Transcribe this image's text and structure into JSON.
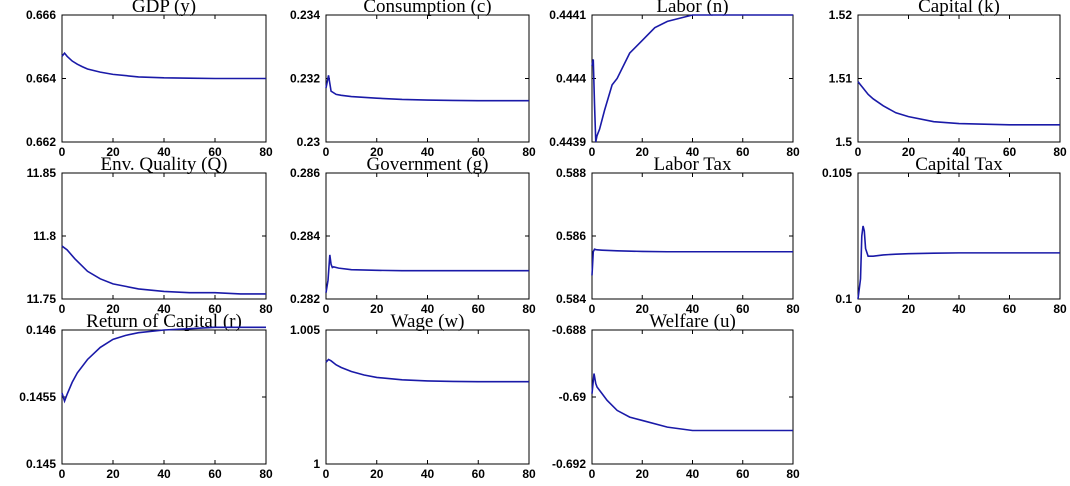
{
  "colors": {
    "line": "#1a1aa8",
    "axes": "#000000",
    "background": "#ffffff"
  },
  "chart_data": [
    {
      "type": "line",
      "title": "GDP (y)",
      "xlabel": "",
      "ylabel": "",
      "xlim": [
        0,
        80
      ],
      "ylim": [
        0.662,
        0.666
      ],
      "xticks": [
        "0",
        "20",
        "40",
        "60",
        "80"
      ],
      "yticks": [
        "0.662",
        "0.664",
        "0.666"
      ],
      "grid": false,
      "series": [
        {
          "x": [
            0,
            1,
            2,
            4,
            6,
            8,
            10,
            15,
            20,
            30,
            40,
            50,
            60,
            70,
            80
          ],
          "y": [
            0.6647,
            0.6648,
            0.6647,
            0.66455,
            0.66445,
            0.66437,
            0.6643,
            0.6642,
            0.66413,
            0.66405,
            0.66402,
            0.66401,
            0.664,
            0.664,
            0.664
          ]
        }
      ]
    },
    {
      "type": "line",
      "title": "Consumption (c)",
      "xlabel": "",
      "ylabel": "",
      "xlim": [
        0,
        80
      ],
      "ylim": [
        0.23,
        0.234
      ],
      "xticks": [
        "0",
        "20",
        "40",
        "60",
        "80"
      ],
      "yticks": [
        "0.23",
        "0.232",
        "0.234"
      ],
      "grid": false,
      "series": [
        {
          "x": [
            0,
            1,
            2,
            4,
            6,
            10,
            20,
            30,
            40,
            50,
            60,
            70,
            80
          ],
          "y": [
            0.2317,
            0.2321,
            0.2316,
            0.2315,
            0.23147,
            0.23143,
            0.23138,
            0.23134,
            0.23132,
            0.23131,
            0.2313,
            0.2313,
            0.2313
          ]
        }
      ]
    },
    {
      "type": "line",
      "title": "Labor (n)",
      "xlabel": "",
      "ylabel": "",
      "xlim": [
        0,
        80
      ],
      "ylim": [
        0.4439,
        0.4441
      ],
      "xticks": [
        "0",
        "20",
        "40",
        "60",
        "80"
      ],
      "yticks": [
        "0.4439",
        "0.444",
        "0.4441"
      ],
      "grid": false,
      "series": [
        {
          "x": [
            0,
            0.5,
            1,
            1.5,
            2,
            3,
            5,
            8,
            10,
            15,
            20,
            25,
            30,
            40,
            50,
            60,
            70,
            80
          ],
          "y": [
            0.44402,
            0.44403,
            0.44396,
            0.4439,
            0.44391,
            0.44392,
            0.44395,
            0.44399,
            0.444,
            0.44404,
            0.44406,
            0.44408,
            0.44409,
            0.4441,
            0.4441,
            0.4441,
            0.4441,
            0.4441
          ]
        }
      ]
    },
    {
      "type": "line",
      "title": "Capital (k)",
      "xlabel": "",
      "ylabel": "",
      "xlim": [
        0,
        80
      ],
      "ylim": [
        1.5,
        1.52
      ],
      "xticks": [
        "0",
        "20",
        "40",
        "60",
        "80"
      ],
      "yticks": [
        "1.5",
        "1.51",
        "1.52"
      ],
      "grid": false,
      "series": [
        {
          "x": [
            0,
            1,
            2,
            4,
            6,
            10,
            15,
            20,
            30,
            40,
            50,
            60,
            70,
            80
          ],
          "y": [
            1.5095,
            1.509,
            1.5085,
            1.5075,
            1.5068,
            1.5057,
            1.5046,
            1.504,
            1.5032,
            1.5029,
            1.5028,
            1.5027,
            1.5027,
            1.5027
          ]
        }
      ]
    },
    {
      "type": "line",
      "title": "Env. Quality (Q)",
      "xlabel": "",
      "ylabel": "",
      "xlim": [
        0,
        80
      ],
      "ylim": [
        11.75,
        11.85
      ],
      "xticks": [
        "0",
        "20",
        "40",
        "60",
        "80"
      ],
      "yticks": [
        "11.75",
        "11.8",
        "11.85"
      ],
      "grid": false,
      "series": [
        {
          "x": [
            0,
            2,
            5,
            10,
            15,
            20,
            25,
            30,
            40,
            50,
            60,
            70,
            80
          ],
          "y": [
            11.792,
            11.789,
            11.782,
            11.772,
            11.766,
            11.762,
            11.76,
            11.758,
            11.756,
            11.755,
            11.755,
            11.754,
            11.754
          ]
        }
      ]
    },
    {
      "type": "line",
      "title": "Government (g)",
      "xlabel": "",
      "ylabel": "",
      "xlim": [
        0,
        80
      ],
      "ylim": [
        0.282,
        0.286
      ],
      "xticks": [
        "0",
        "20",
        "40",
        "60",
        "80"
      ],
      "yticks": [
        "0.282",
        "0.284",
        "0.286"
      ],
      "grid": false,
      "series": [
        {
          "x": [
            0,
            0.8,
            1.5,
            2,
            2.5,
            3,
            5,
            10,
            20,
            30,
            40,
            50,
            60,
            70,
            80
          ],
          "y": [
            0.2822,
            0.2826,
            0.2834,
            0.2831,
            0.283,
            0.28302,
            0.28298,
            0.28293,
            0.28291,
            0.2829,
            0.2829,
            0.2829,
            0.2829,
            0.2829,
            0.2829
          ]
        }
      ]
    },
    {
      "type": "line",
      "title": "Labor Tax",
      "xlabel": "",
      "ylabel": "",
      "xlim": [
        0,
        80
      ],
      "ylim": [
        0.584,
        0.588
      ],
      "xticks": [
        "0",
        "20",
        "40",
        "60",
        "80"
      ],
      "yticks": [
        "0.584",
        "0.586",
        "0.588"
      ],
      "grid": false,
      "series": [
        {
          "x": [
            0,
            0.5,
            1,
            1.5,
            2,
            4,
            10,
            20,
            30,
            40,
            50,
            60,
            70,
            80
          ],
          "y": [
            0.58475,
            0.5855,
            0.58558,
            0.58557,
            0.58556,
            0.58555,
            0.58553,
            0.58551,
            0.5855,
            0.5855,
            0.5855,
            0.5855,
            0.5855,
            0.5855
          ]
        }
      ]
    },
    {
      "type": "line",
      "title": "Capital Tax",
      "xlabel": "",
      "ylabel": "",
      "xlim": [
        0,
        80
      ],
      "ylim": [
        0.1,
        0.105
      ],
      "xticks": [
        "0",
        "20",
        "40",
        "60",
        "80"
      ],
      "yticks": [
        "0.1",
        "0.105"
      ],
      "grid": false,
      "series": [
        {
          "x": [
            0,
            1,
            1.5,
            2,
            2.5,
            3,
            4,
            6,
            10,
            15,
            20,
            30,
            40,
            50,
            60,
            70,
            80
          ],
          "y": [
            0.1,
            0.1008,
            0.1025,
            0.1029,
            0.1027,
            0.102,
            0.1017,
            0.1017,
            0.10175,
            0.10178,
            0.1018,
            0.10182,
            0.10183,
            0.10183,
            0.10183,
            0.10183,
            0.10183
          ]
        }
      ]
    },
    {
      "type": "line",
      "title": "Return of Capital (r)",
      "xlabel": "",
      "ylabel": "",
      "xlim": [
        0,
        80
      ],
      "ylim": [
        0.145,
        0.146
      ],
      "xticks": [
        "0",
        "20",
        "40",
        "60",
        "80"
      ],
      "yticks": [
        "0.145",
        "0.1455",
        "0.146"
      ],
      "grid": false,
      "series": [
        {
          "x": [
            0,
            1,
            2,
            4,
            6,
            10,
            15,
            20,
            25,
            30,
            40,
            50,
            60,
            70,
            80
          ],
          "y": [
            0.14553,
            0.14547,
            0.14552,
            0.14561,
            0.14568,
            0.14578,
            0.14587,
            0.14593,
            0.14596,
            0.14598,
            0.146,
            0.14601,
            0.14602,
            0.14602,
            0.14602
          ]
        }
      ]
    },
    {
      "type": "line",
      "title": "Wage (w)",
      "xlabel": "",
      "ylabel": "",
      "xlim": [
        0,
        80
      ],
      "ylim": [
        1,
        1.005
      ],
      "xticks": [
        "0",
        "20",
        "40",
        "60",
        "80"
      ],
      "yticks": [
        "1",
        "1.005"
      ],
      "grid": false,
      "series": [
        {
          "x": [
            0,
            1,
            2,
            4,
            6,
            10,
            15,
            20,
            30,
            40,
            50,
            60,
            70,
            80
          ],
          "y": [
            1.0038,
            1.0039,
            1.00385,
            1.0037,
            1.0036,
            1.00345,
            1.00332,
            1.00323,
            1.00314,
            1.0031,
            1.00308,
            1.00307,
            1.00307,
            1.00307
          ]
        }
      ]
    },
    {
      "type": "line",
      "title": "Welfare (u)",
      "xlabel": "",
      "ylabel": "",
      "xlim": [
        0,
        80
      ],
      "ylim": [
        -0.692,
        -0.688
      ],
      "xticks": [
        "0",
        "20",
        "40",
        "60",
        "80"
      ],
      "yticks": [
        "-0.692",
        "-0.69",
        "-0.688"
      ],
      "grid": false,
      "series": [
        {
          "x": [
            0,
            0.8,
            1.5,
            2,
            4,
            6,
            10,
            15,
            20,
            30,
            40,
            50,
            60,
            70,
            80
          ],
          "y": [
            -0.6899,
            -0.6893,
            -0.6896,
            -0.6897,
            -0.6899,
            -0.6901,
            -0.6904,
            -0.6906,
            -0.6907,
            -0.6909,
            -0.691,
            -0.691,
            -0.691,
            -0.691,
            -0.691
          ]
        }
      ]
    }
  ]
}
